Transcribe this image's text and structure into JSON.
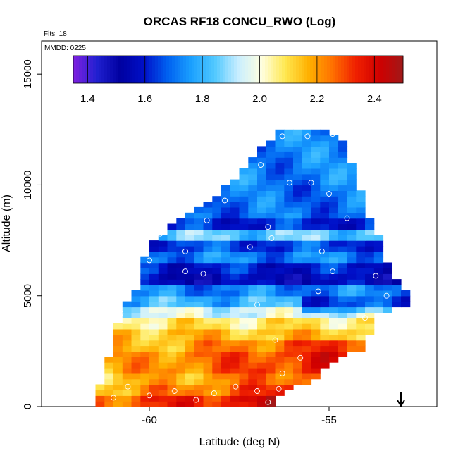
{
  "header": {
    "title": "ORCAS RF18 CONCU_RWO (Log)",
    "flts": "Flts: 18",
    "mmdd": "MMDD: 0225"
  },
  "chart_data": {
    "type": "heatmap",
    "title": "ORCAS RF18 CONCU_RWO (Log)",
    "xlabel": "Latitude (deg N)",
    "ylabel": "Altitude (m)",
    "xlim": [
      -63.0,
      -52.0
    ],
    "ylim": [
      0,
      16500
    ],
    "x_ticks": [
      -60,
      -55
    ],
    "x_tick_labels": [
      "-60",
      "-55"
    ],
    "y_ticks": [
      0,
      5000,
      10000,
      15000
    ],
    "y_tick_labels": [
      "0",
      "5000",
      "10000",
      "15000"
    ],
    "colorbar": {
      "range": [
        1.35,
        2.5
      ],
      "ticks": [
        1.4,
        1.6,
        1.8,
        2.0,
        2.2,
        2.4
      ],
      "tick_labels": [
        "1.4",
        "1.6",
        "1.8",
        "2.0",
        "2.2",
        "2.4"
      ],
      "colors": [
        "#8020e0",
        "#2020d0",
        "#0000a0",
        "#0010c8",
        "#0060f0",
        "#1aa0ff",
        "#50c8ff",
        "#c8eeff",
        "#ffffe0",
        "#ffe850",
        "#ffb000",
        "#ff7000",
        "#f02000",
        "#d00000",
        "#a01818"
      ]
    },
    "grid_cells": {
      "x_step": 0.25,
      "alt_step": 250,
      "bands": [
        {
          "alt": [
            0,
            500
          ],
          "value": 2.4
        },
        {
          "alt": [
            500,
            1000
          ],
          "value": 2.3
        },
        {
          "alt": [
            1000,
            1500
          ],
          "value": 2.25
        },
        {
          "alt": [
            1500,
            2000
          ],
          "value": 2.3
        },
        {
          "alt": [
            2000,
            2500
          ],
          "value": 2.3
        },
        {
          "alt": [
            2500,
            3000
          ],
          "value": 2.25
        },
        {
          "alt": [
            3000,
            3500
          ],
          "value": 2.15
        },
        {
          "alt": [
            3500,
            4000
          ],
          "value": 2.08
        },
        {
          "alt": [
            4000,
            4500
          ],
          "value": 1.95
        },
        {
          "alt": [
            4500,
            5000
          ],
          "value": 1.8
        },
        {
          "alt": [
            5000,
            5500
          ],
          "value": 1.72
        },
        {
          "alt": [
            5500,
            6000
          ],
          "value": 1.55
        },
        {
          "alt": [
            6000,
            6500
          ],
          "value": 1.6
        },
        {
          "alt": [
            6500,
            7000
          ],
          "value": 1.72
        },
        {
          "alt": [
            7000,
            7500
          ],
          "value": 1.65
        },
        {
          "alt": [
            7500,
            8000
          ],
          "value": 1.85
        },
        {
          "alt": [
            8000,
            8500
          ],
          "value": 1.62
        },
        {
          "alt": [
            8500,
            10000
          ],
          "value": 1.7
        },
        {
          "alt": [
            10000,
            12500
          ],
          "value": 1.72
        }
      ]
    },
    "sample_points": [
      {
        "lat": -61.0,
        "alt": 400
      },
      {
        "lat": -60.6,
        "alt": 900
      },
      {
        "lat": -60.0,
        "alt": 500
      },
      {
        "lat": -59.3,
        "alt": 700
      },
      {
        "lat": -58.7,
        "alt": 300
      },
      {
        "lat": -58.2,
        "alt": 600
      },
      {
        "lat": -57.6,
        "alt": 900
      },
      {
        "lat": -57.0,
        "alt": 700
      },
      {
        "lat": -56.7,
        "alt": 200
      },
      {
        "lat": -56.4,
        "alt": 800
      },
      {
        "lat": -61.4,
        "alt": 2200
      },
      {
        "lat": -60.8,
        "alt": 4200
      },
      {
        "lat": -56.5,
        "alt": 3000
      },
      {
        "lat": -55.8,
        "alt": 2200
      },
      {
        "lat": -56.3,
        "alt": 1500
      },
      {
        "lat": -59.0,
        "alt": 6100
      },
      {
        "lat": -58.5,
        "alt": 6000
      },
      {
        "lat": -57.2,
        "alt": 7200
      },
      {
        "lat": -56.7,
        "alt": 8100
      },
      {
        "lat": -55.2,
        "alt": 7000
      },
      {
        "lat": -54.9,
        "alt": 6100
      },
      {
        "lat": -54.5,
        "alt": 8500
      },
      {
        "lat": -53.7,
        "alt": 5900
      },
      {
        "lat": -53.4,
        "alt": 5000
      },
      {
        "lat": -60.0,
        "alt": 6600
      },
      {
        "lat": -59.0,
        "alt": 7000
      },
      {
        "lat": -57.9,
        "alt": 9300
      },
      {
        "lat": -56.1,
        "alt": 10100
      },
      {
        "lat": -55.5,
        "alt": 10100
      },
      {
        "lat": -55.0,
        "alt": 9600
      },
      {
        "lat": -57.3,
        "alt": 12100
      },
      {
        "lat": -56.3,
        "alt": 12200
      },
      {
        "lat": -55.6,
        "alt": 12200
      },
      {
        "lat": -54.9,
        "alt": 12300
      },
      {
        "lat": -54.2,
        "alt": 11700
      },
      {
        "lat": -57.0,
        "alt": 4600
      },
      {
        "lat": -55.3,
        "alt": 5200
      },
      {
        "lat": -54.0,
        "alt": 4000
      },
      {
        "lat": -59.7,
        "alt": 7800
      },
      {
        "lat": -56.6,
        "alt": 7600
      },
      {
        "lat": -58.4,
        "alt": 8400
      },
      {
        "lat": -56.9,
        "alt": 10900
      }
    ],
    "arrow_marker": {
      "lat": -53.0,
      "direction": "down"
    }
  }
}
